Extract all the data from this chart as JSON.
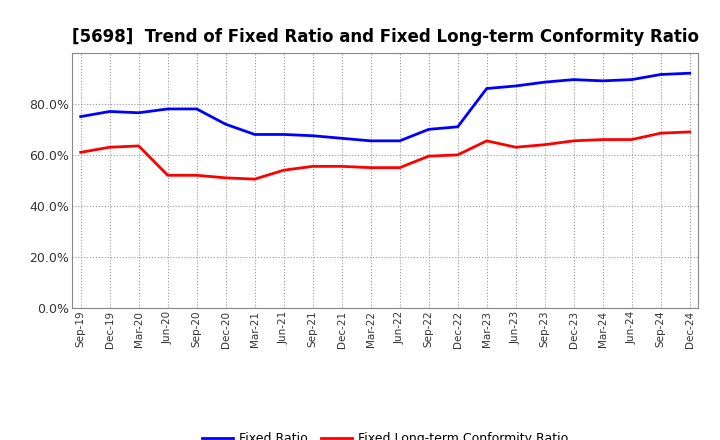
{
  "title": "[5698]  Trend of Fixed Ratio and Fixed Long-term Conformity Ratio",
  "x_labels": [
    "Sep-19",
    "Dec-19",
    "Mar-20",
    "Jun-20",
    "Sep-20",
    "Dec-20",
    "Mar-21",
    "Jun-21",
    "Sep-21",
    "Dec-21",
    "Mar-22",
    "Jun-22",
    "Sep-22",
    "Dec-22",
    "Mar-23",
    "Jun-23",
    "Sep-23",
    "Dec-23",
    "Mar-24",
    "Jun-24",
    "Sep-24",
    "Dec-24"
  ],
  "fixed_ratio": [
    75.0,
    77.0,
    76.5,
    78.0,
    78.0,
    72.0,
    68.0,
    68.0,
    67.5,
    66.5,
    65.5,
    65.5,
    70.0,
    71.0,
    86.0,
    87.0,
    88.5,
    89.5,
    89.0,
    89.5,
    91.5,
    92.0
  ],
  "fixed_lt_ratio": [
    61.0,
    63.0,
    63.5,
    52.0,
    52.0,
    51.0,
    50.5,
    54.0,
    55.5,
    55.5,
    55.0,
    55.0,
    59.5,
    60.0,
    65.5,
    63.0,
    64.0,
    65.5,
    66.0,
    66.0,
    68.5,
    69.0
  ],
  "blue_color": "#0000FF",
  "red_color": "#FF0000",
  "ylim": [
    0,
    100
  ],
  "yticks": [
    0,
    20,
    40,
    60,
    80
  ],
  "legend_fixed": "Fixed Ratio",
  "legend_lt": "Fixed Long-term Conformity Ratio",
  "background_color": "#FFFFFF",
  "grid_color": "#AAAAAA"
}
